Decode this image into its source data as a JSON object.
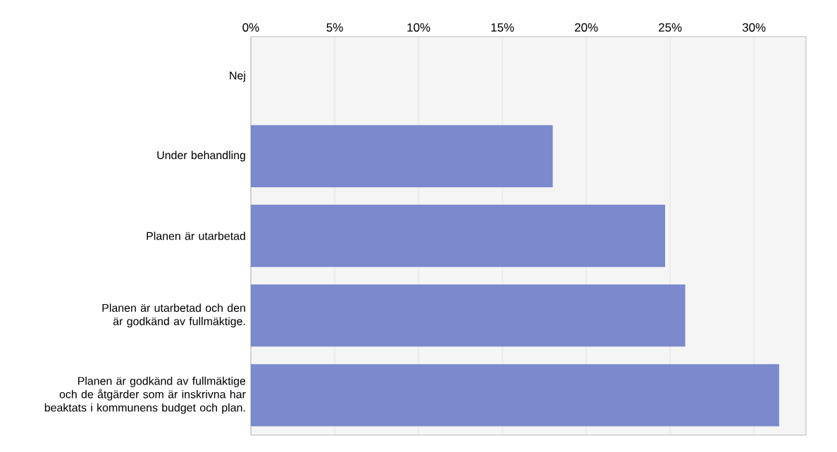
{
  "chart_data": {
    "type": "bar",
    "orientation": "horizontal",
    "categories": [
      "Nej",
      "Under behandling",
      "Planen är utarbetad",
      "Planen är utarbetad och den är godkänd av fullmäktige.",
      "Planen är godkänd av fullmäktige och de åtgärder som är inskrivna har beaktats i kommunens budget och plan."
    ],
    "values": [
      0,
      18.0,
      24.7,
      25.9,
      31.5
    ],
    "color": "#7b8acc",
    "xlim": [
      0,
      33.1
    ],
    "xticks": [
      {
        "value": 0,
        "label": "0%"
      },
      {
        "value": 5,
        "label": "5%"
      },
      {
        "value": 10,
        "label": "10%"
      },
      {
        "value": 15,
        "label": "15%"
      },
      {
        "value": 20,
        "label": "20%"
      },
      {
        "value": 25,
        "label": "25%"
      },
      {
        "value": 30,
        "label": "30%"
      }
    ],
    "grid": "x"
  }
}
